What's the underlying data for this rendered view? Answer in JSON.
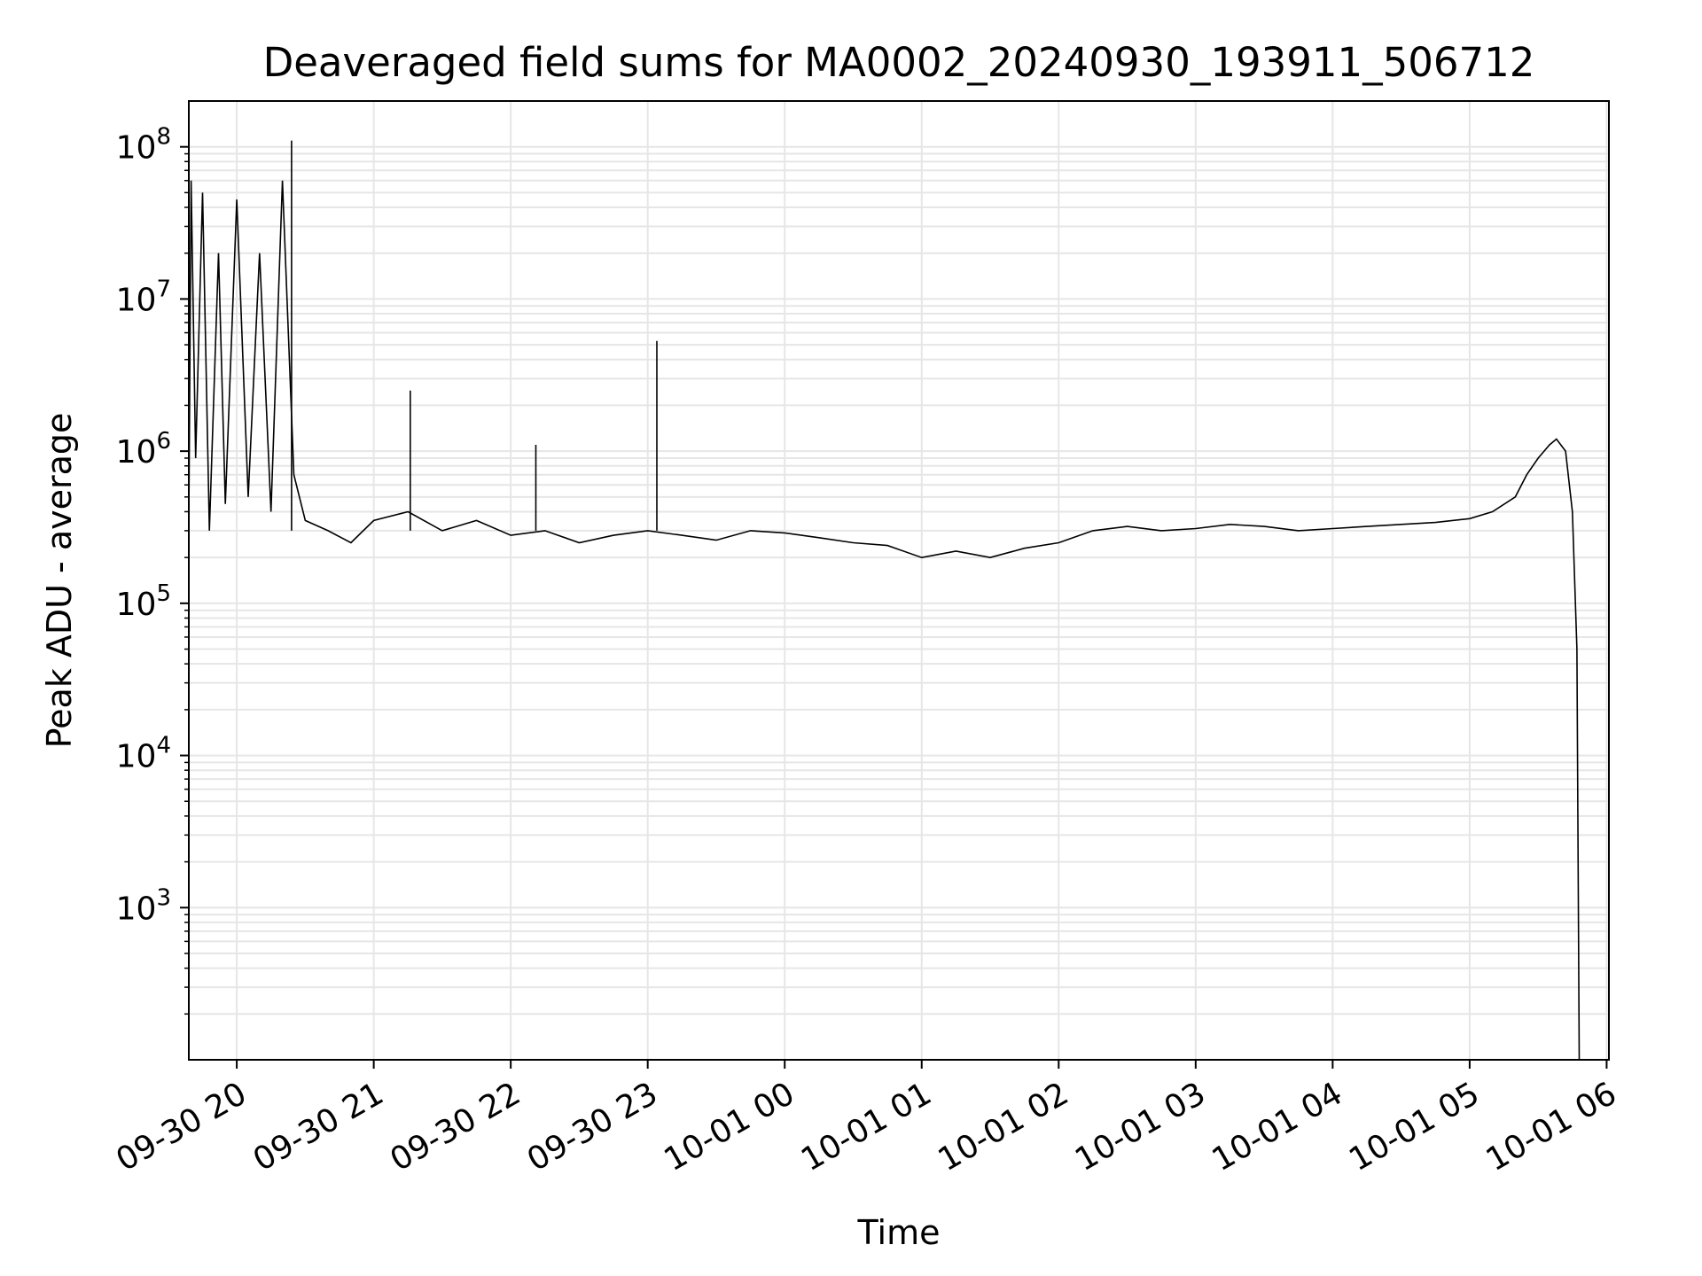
{
  "chart_data": {
    "type": "line",
    "title": "Deaveraged field sums for MA0002_20240930_193911_506712",
    "xlabel": "Time",
    "ylabel": "Peak ADU - average",
    "xlim": [
      "2024-09-30 19:39",
      "2024-10-01 06:01"
    ],
    "ylim": [
      100,
      200000000
    ],
    "yscale": "log",
    "grid": true,
    "x_tick_labels": [
      "09-30 20",
      "09-30 21",
      "09-30 22",
      "09-30 23",
      "10-01 00",
      "10-01 01",
      "10-01 02",
      "10-01 03",
      "10-01 04",
      "10-01 05",
      "10-01 06"
    ],
    "y_tick_labels": [
      {
        "base": "10",
        "exp": "3",
        "value": 1000
      },
      {
        "base": "10",
        "exp": "4",
        "value": 10000
      },
      {
        "base": "10",
        "exp": "5",
        "value": 100000
      },
      {
        "base": "10",
        "exp": "6",
        "value": 1000000
      },
      {
        "base": "10",
        "exp": "7",
        "value": 10000000
      },
      {
        "base": "10",
        "exp": "8",
        "value": 100000000
      }
    ],
    "series": [
      {
        "color": "#000000",
        "x": [
          "2024-09-30 19:39",
          "2024-09-30 19:40",
          "2024-09-30 19:42",
          "2024-09-30 19:45",
          "2024-09-30 19:48",
          "2024-09-30 19:52",
          "2024-09-30 19:55",
          "2024-09-30 20:00",
          "2024-09-30 20:05",
          "2024-09-30 20:10",
          "2024-09-30 20:15",
          "2024-09-30 20:20",
          "2024-09-30 20:25",
          "2024-09-30 20:30",
          "2024-09-30 20:40",
          "2024-09-30 20:50",
          "2024-09-30 21:00",
          "2024-09-30 21:15",
          "2024-09-30 21:30",
          "2024-09-30 21:45",
          "2024-09-30 22:00",
          "2024-09-30 22:15",
          "2024-09-30 22:30",
          "2024-09-30 22:45",
          "2024-09-30 23:00",
          "2024-09-30 23:15",
          "2024-09-30 23:30",
          "2024-09-30 23:45",
          "2024-10-01 00:00",
          "2024-10-01 00:15",
          "2024-10-01 00:30",
          "2024-10-01 00:45",
          "2024-10-01 01:00",
          "2024-10-01 01:15",
          "2024-10-01 01:30",
          "2024-10-01 01:45",
          "2024-10-01 02:00",
          "2024-10-01 02:15",
          "2024-10-01 02:30",
          "2024-10-01 02:45",
          "2024-10-01 03:00",
          "2024-10-01 03:15",
          "2024-10-01 03:30",
          "2024-10-01 03:45",
          "2024-10-01 04:00",
          "2024-10-01 04:15",
          "2024-10-01 04:30",
          "2024-10-01 04:45",
          "2024-10-01 05:00",
          "2024-10-01 05:10",
          "2024-10-01 05:20",
          "2024-10-01 05:25",
          "2024-10-01 05:30",
          "2024-10-01 05:35",
          "2024-10-01 05:38",
          "2024-10-01 05:42",
          "2024-10-01 05:45",
          "2024-10-01 05:47",
          "2024-10-01 05:48"
        ],
        "y": [
          350000,
          60000000,
          900000,
          50000000,
          300000,
          20000000,
          450000,
          45000000,
          500000,
          20000000,
          400000,
          60000000,
          700000,
          350000,
          300000,
          250000,
          350000,
          400000,
          300000,
          350000,
          280000,
          300000,
          250000,
          280000,
          300000,
          280000,
          260000,
          300000,
          290000,
          270000,
          250000,
          240000,
          200000,
          220000,
          200000,
          230000,
          250000,
          300000,
          320000,
          300000,
          310000,
          330000,
          320000,
          300000,
          310000,
          320000,
          330000,
          340000,
          360000,
          400000,
          500000,
          700000,
          900000,
          1100000,
          1200000,
          1000000,
          400000,
          50000,
          100
        ]
      }
    ],
    "annotations": [
      {
        "x": "2024-09-30 20:24",
        "y": 110000000,
        "note": "spike"
      },
      {
        "x": "2024-09-30 21:16",
        "y": 2500000,
        "note": "spike"
      },
      {
        "x": "2024-09-30 22:11",
        "y": 1100000,
        "note": "spike"
      },
      {
        "x": "2024-09-30 23:04",
        "y": 5300000,
        "note": "spike"
      }
    ]
  }
}
